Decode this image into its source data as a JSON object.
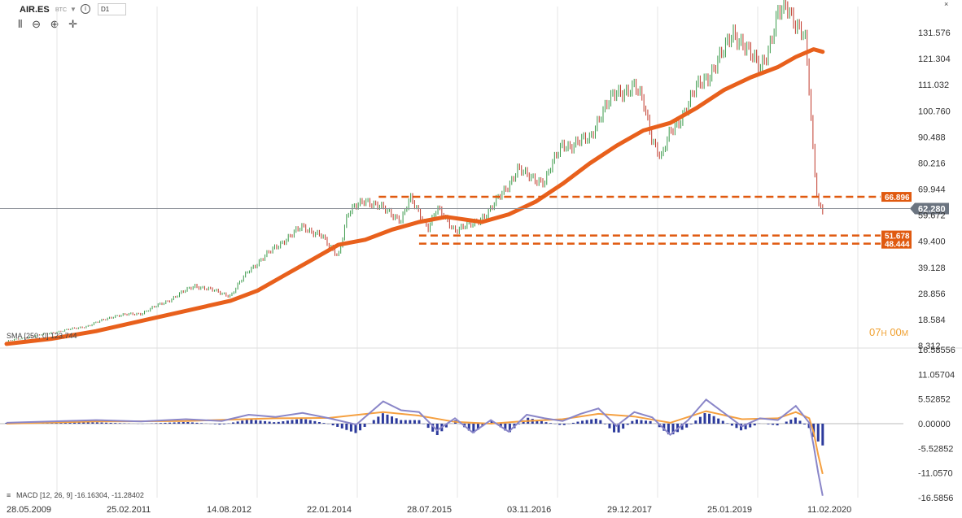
{
  "header": {
    "symbol": "AIR.ES",
    "exchange": "BTC",
    "timeframe": "D1"
  },
  "indicators": {
    "sma_label": "SMA [250, 0] 123.744",
    "macd_label": "MACD [12, 26, 9] -16.16304, -11.28402"
  },
  "timer": {
    "hours": "07",
    "h": "H",
    "minutes": "00",
    "m": "M"
  },
  "colors": {
    "up": "#3a9a4a",
    "down": "#c0392b",
    "sma": "#e8601c",
    "level": "#e05a10",
    "macd": "#8a86c8",
    "signal": "#f5a040",
    "hist": "#2c3a9c",
    "last_price_bg": "#6b7480",
    "grid": "#e6e6e6"
  },
  "chart_data": [
    {
      "type": "candlestick",
      "title": "AIR.ES",
      "x_ticks": [
        "28.05.2009",
        "25.02.2011",
        "14.08.2012",
        "22.01.2014",
        "28.07.2015",
        "03.11.2016",
        "29.12.2017",
        "25.01.2019",
        "11.02.2020"
      ],
      "y_ticks": [
        "131.576",
        "121.304",
        "111.032",
        "100.760",
        "90.488",
        "80.216",
        "69.944",
        "59.672",
        "49.400",
        "39.128",
        "28.856",
        "18.584",
        "8.312"
      ],
      "ylim": [
        8.312,
        141.848
      ],
      "last_price": "62.280",
      "price_series": [
        [
          0,
          10
        ],
        [
          0.03,
          12
        ],
        [
          0.06,
          14
        ],
        [
          0.09,
          16
        ],
        [
          0.12,
          20
        ],
        [
          0.15,
          21
        ],
        [
          0.18,
          26
        ],
        [
          0.21,
          32
        ],
        [
          0.23,
          30
        ],
        [
          0.25,
          28
        ],
        [
          0.27,
          38
        ],
        [
          0.29,
          44
        ],
        [
          0.31,
          50
        ],
        [
          0.33,
          55
        ],
        [
          0.35,
          52
        ],
        [
          0.36,
          47
        ],
        [
          0.37,
          44
        ],
        [
          0.38,
          60
        ],
        [
          0.4,
          66
        ],
        [
          0.42,
          62
        ],
        [
          0.44,
          58
        ],
        [
          0.45,
          66
        ],
        [
          0.47,
          55
        ],
        [
          0.48,
          62
        ],
        [
          0.5,
          54
        ],
        [
          0.52,
          56
        ],
        [
          0.54,
          62
        ],
        [
          0.56,
          72
        ],
        [
          0.57,
          78
        ],
        [
          0.58,
          75
        ],
        [
          0.6,
          73
        ],
        [
          0.62,
          88
        ],
        [
          0.63,
          87
        ],
        [
          0.65,
          90
        ],
        [
          0.66,
          98
        ],
        [
          0.68,
          108
        ],
        [
          0.7,
          110
        ],
        [
          0.71,
          104
        ],
        [
          0.72,
          90
        ],
        [
          0.73,
          82
        ],
        [
          0.74,
          92
        ],
        [
          0.755,
          100
        ],
        [
          0.77,
          110
        ],
        [
          0.785,
          116
        ],
        [
          0.8,
          124
        ],
        [
          0.81,
          132
        ],
        [
          0.82,
          128
        ],
        [
          0.83,
          122
        ],
        [
          0.84,
          118
        ],
        [
          0.85,
          126
        ],
        [
          0.86,
          138
        ],
        [
          0.87,
          142
        ],
        [
          0.88,
          136
        ],
        [
          0.89,
          130
        ],
        [
          0.895,
          108
        ],
        [
          0.9,
          80
        ],
        [
          0.905,
          64
        ],
        [
          0.91,
          62.28
        ]
      ],
      "sma_series": [
        [
          0,
          9
        ],
        [
          0.05,
          11
        ],
        [
          0.1,
          14
        ],
        [
          0.15,
          18
        ],
        [
          0.2,
          22
        ],
        [
          0.25,
          26
        ],
        [
          0.28,
          30
        ],
        [
          0.31,
          36
        ],
        [
          0.34,
          42
        ],
        [
          0.37,
          48
        ],
        [
          0.4,
          50
        ],
        [
          0.43,
          54
        ],
        [
          0.46,
          57
        ],
        [
          0.49,
          59
        ],
        [
          0.51,
          58
        ],
        [
          0.53,
          57
        ],
        [
          0.56,
          60
        ],
        [
          0.59,
          65
        ],
        [
          0.62,
          72
        ],
        [
          0.65,
          80
        ],
        [
          0.68,
          87
        ],
        [
          0.71,
          93
        ],
        [
          0.74,
          96
        ],
        [
          0.77,
          102
        ],
        [
          0.8,
          109
        ],
        [
          0.83,
          114
        ],
        [
          0.86,
          118
        ],
        [
          0.88,
          122
        ],
        [
          0.9,
          125
        ],
        [
          0.91,
          124
        ]
      ],
      "levels": [
        {
          "value": 66.896,
          "label": "66.896",
          "from": 0.415
        },
        {
          "value": 51.678,
          "label": "51.678",
          "from": 0.46
        },
        {
          "value": 48.444,
          "label": "48.444",
          "from": 0.46
        }
      ]
    },
    {
      "type": "line",
      "title": "MACD",
      "y_ticks": [
        "16.58556",
        "11.05704",
        "5.52852",
        "0.00000",
        "-5.52852",
        "-11.0570",
        "-16.5856"
      ],
      "ylim": [
        -16.5856,
        16.58556
      ],
      "series": [
        {
          "name": "MACD",
          "values": [
            [
              0,
              0.2
            ],
            [
              0.05,
              0.5
            ],
            [
              0.1,
              0.8
            ],
            [
              0.15,
              0.5
            ],
            [
              0.2,
              1
            ],
            [
              0.24,
              0.6
            ],
            [
              0.27,
              2
            ],
            [
              0.3,
              1.5
            ],
            [
              0.33,
              2.4
            ],
            [
              0.36,
              1.2
            ],
            [
              0.39,
              -0.2
            ],
            [
              0.42,
              5
            ],
            [
              0.44,
              3
            ],
            [
              0.46,
              2.6
            ],
            [
              0.48,
              -1.5
            ],
            [
              0.5,
              1.2
            ],
            [
              0.52,
              -2
            ],
            [
              0.54,
              0.8
            ],
            [
              0.56,
              -1.8
            ],
            [
              0.58,
              2
            ],
            [
              0.6,
              1.2
            ],
            [
              0.62,
              0.6
            ],
            [
              0.64,
              2.2
            ],
            [
              0.66,
              3.4
            ],
            [
              0.68,
              -0.5
            ],
            [
              0.7,
              2.6
            ],
            [
              0.72,
              1.4
            ],
            [
              0.74,
              -2.5
            ],
            [
              0.76,
              0.8
            ],
            [
              0.78,
              5.4
            ],
            [
              0.8,
              2.4
            ],
            [
              0.82,
              -0.6
            ],
            [
              0.84,
              1.2
            ],
            [
              0.86,
              0.8
            ],
            [
              0.88,
              4
            ],
            [
              0.895,
              0.2
            ],
            [
              0.9,
              -5
            ],
            [
              0.905,
              -11
            ],
            [
              0.91,
              -16.16
            ]
          ]
        },
        {
          "name": "Signal",
          "values": [
            [
              0,
              0
            ],
            [
              0.1,
              0.5
            ],
            [
              0.2,
              0.6
            ],
            [
              0.3,
              1.2
            ],
            [
              0.36,
              1.3
            ],
            [
              0.42,
              2.6
            ],
            [
              0.46,
              1.8
            ],
            [
              0.5,
              0.4
            ],
            [
              0.54,
              0
            ],
            [
              0.58,
              0.6
            ],
            [
              0.62,
              1
            ],
            [
              0.66,
              2.2
            ],
            [
              0.7,
              1.6
            ],
            [
              0.74,
              0.2
            ],
            [
              0.78,
              2.8
            ],
            [
              0.82,
              1
            ],
            [
              0.86,
              1.2
            ],
            [
              0.88,
              2.6
            ],
            [
              0.895,
              1.2
            ],
            [
              0.9,
              -2
            ],
            [
              0.905,
              -7
            ],
            [
              0.91,
              -11.28
            ]
          ]
        }
      ]
    }
  ]
}
